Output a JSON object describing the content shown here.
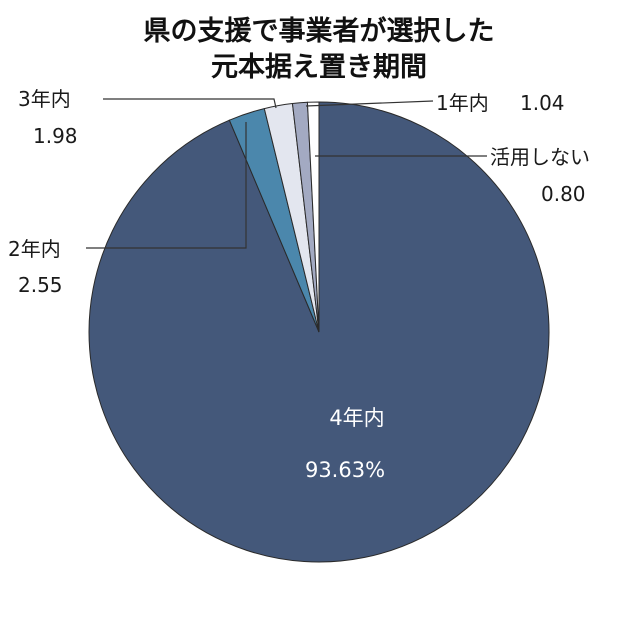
{
  "chart_data": {
    "type": "pie",
    "title_lines": [
      "県の支援で事業者が選択した",
      "元本据え置き期間"
    ],
    "slices": [
      {
        "label": "4年内",
        "value": 93.63,
        "value_text": "93.63%",
        "color": "#44587a"
      },
      {
        "label": "2年内",
        "value": 2.55,
        "value_text": "2.55",
        "color": "#4b87ac"
      },
      {
        "label": "3年内",
        "value": 1.98,
        "value_text": "1.98",
        "color": "#e3e6ef"
      },
      {
        "label": "1年内",
        "value": 1.04,
        "value_text": "1.04",
        "color": "#a3aac2"
      },
      {
        "label": "活用しない",
        "value": 0.8,
        "value_text": "0.80",
        "color": "#ffffff"
      }
    ]
  }
}
